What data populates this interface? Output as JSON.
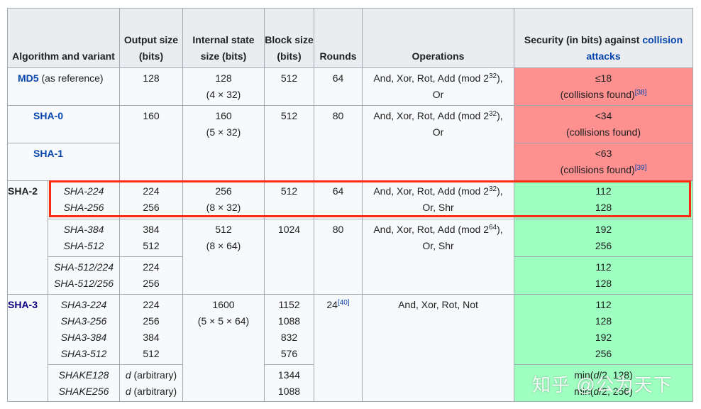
{
  "headers": {
    "algorithm": "Algorithm and variant",
    "output": "Output size (bits)",
    "internal": "Internal state size (bits)",
    "block": "Block size (bits)",
    "rounds": "Rounds",
    "operations": "Operations",
    "security_prefix": "Security (in bits) against",
    "security_link": "collision attacks"
  },
  "md5": {
    "name": "MD5",
    "suffix": "(as reference)",
    "output": "128",
    "internal": "128",
    "internal_sub": "(4 × 32)",
    "block": "512",
    "rounds": "64",
    "ops_a": "And, Xor, Rot, Add (mod 2",
    "ops_exp": "32",
    "ops_b": "),",
    "ops_c": "Or",
    "sec": "≤18",
    "sec_note": "(collisions found)",
    "sec_ref": "[38]"
  },
  "sha0": {
    "name": "SHA-0",
    "output": "160",
    "internal": "160",
    "internal_sub": "(5 × 32)",
    "block": "512",
    "rounds": "80",
    "ops_a": "And, Xor, Rot, Add (mod 2",
    "ops_exp": "32",
    "ops_b": "),",
    "ops_c": "Or",
    "sec": "<34",
    "sec_note": "(collisions found)"
  },
  "sha1": {
    "name": "SHA-1",
    "sec": "<63",
    "sec_note": "(collisions found)",
    "sec_ref": "[39]"
  },
  "sha2": {
    "family": "SHA-2",
    "g1": {
      "variants": [
        "SHA-224",
        "SHA-256"
      ],
      "outputs": [
        "224",
        "256"
      ],
      "internal": "256",
      "internal_sub": "(8 × 32)",
      "block": "512",
      "rounds": "64",
      "ops_a": "And, Xor, Rot, Add (mod 2",
      "ops_exp": "32",
      "ops_b": "),",
      "ops_c": "Or, Shr",
      "sec": [
        "112",
        "128"
      ]
    },
    "g2": {
      "variants": [
        "SHA-384",
        "SHA-512"
      ],
      "outputs": [
        "384",
        "512"
      ],
      "internal": "512",
      "internal_sub": "(8 × 64)",
      "block": "1024",
      "rounds": "80",
      "ops_a": "And, Xor, Rot, Add (mod 2",
      "ops_exp": "64",
      "ops_b": "),",
      "ops_c": "Or, Shr",
      "sec": [
        "192",
        "256"
      ]
    },
    "g3": {
      "variants": [
        "SHA-512/224",
        "SHA-512/256"
      ],
      "outputs": [
        "224",
        "256"
      ],
      "sec": [
        "112",
        "128"
      ]
    }
  },
  "sha3": {
    "family": "SHA-3",
    "g1": {
      "variants": [
        "SHA3-224",
        "SHA3-256",
        "SHA3-384",
        "SHA3-512"
      ],
      "outputs": [
        "224",
        "256",
        "384",
        "512"
      ],
      "internal": "1600",
      "internal_sub": "(5 × 5 × 64)",
      "blocks": [
        "1152",
        "1088",
        "832",
        "576"
      ],
      "rounds": "24",
      "rounds_ref": "[40]",
      "ops": "And, Xor, Rot, Not",
      "sec": [
        "112",
        "128",
        "192",
        "256"
      ]
    },
    "g2": {
      "variants": [
        "SHAKE128",
        "SHAKE256"
      ],
      "output_var": "d",
      "output_note": " (arbitrary)",
      "blocks": [
        "1344",
        "1088"
      ],
      "sec_a_pre": "min(",
      "sec_a_var": "d",
      "sec_a_post": "/2, 128)",
      "sec_b_pre": "min(",
      "sec_b_var": "d",
      "sec_b_post": "/2, 256)"
    }
  },
  "watermark": "知乎 @公为天下",
  "colors": {
    "insecure": "#ff9090",
    "secure": "#9fffc0",
    "link": "#0645ad",
    "highlight": "#ff2a12"
  }
}
